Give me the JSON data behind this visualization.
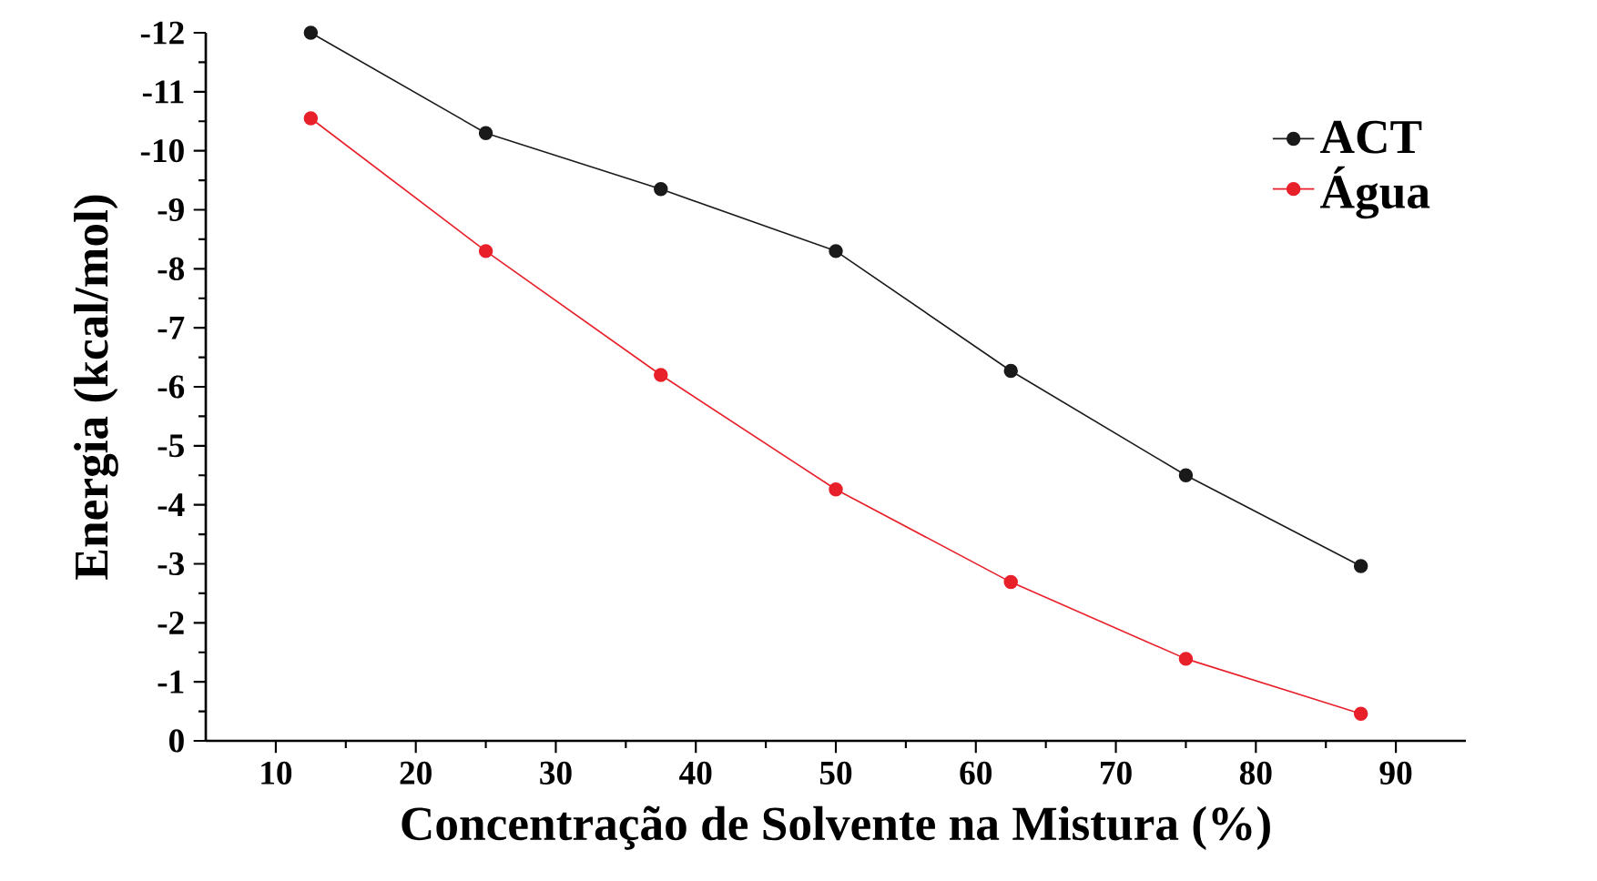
{
  "chart_data": {
    "type": "line",
    "xlabel": "Concentração de Solvente na Mistura (%)",
    "ylabel": "Energia (kcal/mol)",
    "x": [
      12.5,
      25,
      37.5,
      50,
      62.5,
      75,
      87.5
    ],
    "series": [
      {
        "name": "ACT",
        "color": "#1a1a1a",
        "values": [
          -12,
          -10.3,
          -9.35,
          -8.3,
          -6.27,
          -4.5,
          -2.96
        ]
      },
      {
        "name": "Água",
        "color": "#e8202a",
        "values": [
          -10.55,
          -8.3,
          -6.2,
          -4.26,
          -2.69,
          -1.39,
          -0.46
        ]
      }
    ],
    "xlim": [
      5,
      95
    ],
    "xticks": [
      10,
      20,
      30,
      40,
      50,
      60,
      70,
      80,
      90
    ],
    "ylim": [
      0,
      -12
    ],
    "yticks": [
      0,
      -1,
      -2,
      -3,
      -4,
      -5,
      -6,
      -7,
      -8,
      -9,
      -10,
      -11,
      -12
    ],
    "grid": false,
    "legend": "top right",
    "marker": "circle",
    "line_style": "solid"
  }
}
